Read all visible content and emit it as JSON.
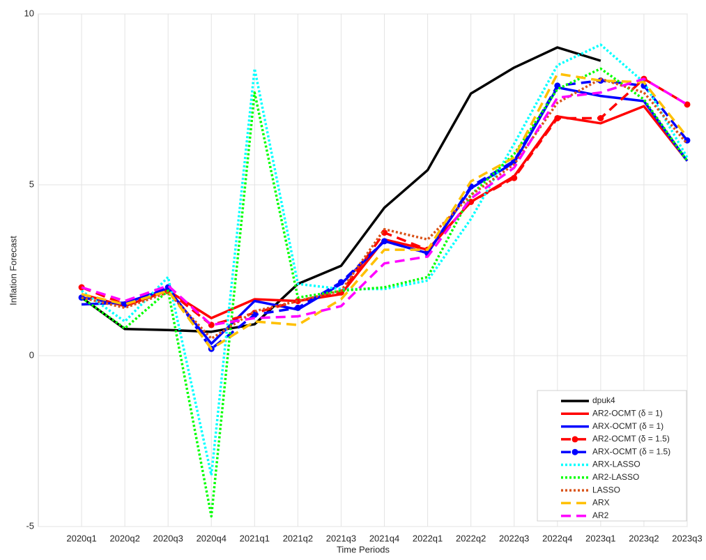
{
  "chart_data": {
    "type": "line",
    "x_label": "Time Periods",
    "y_label": "Inflation Forecast",
    "categories": [
      "2020q1",
      "2020q2",
      "2020q3",
      "2020q4",
      "2021q1",
      "2021q2",
      "2021q3",
      "2021q4",
      "2022q1",
      "2022q2",
      "2022q3",
      "2022q4",
      "2023q1",
      "2023q2",
      "2023q3"
    ],
    "ylim": [
      -5,
      10
    ],
    "yticks": [
      -5,
      0,
      5,
      10
    ],
    "grid": true,
    "legend": "lower right",
    "series": [
      {
        "name": "dpuk4",
        "color": "#000000",
        "style": "solid",
        "values": [
          1.7,
          0.78,
          0.75,
          0.7,
          0.92,
          2.1,
          2.63,
          4.33,
          5.43,
          7.67,
          8.43,
          9.02,
          8.63,
          null,
          null
        ]
      },
      {
        "name": "AR2-OCMT (δ = 1)",
        "color": "#ff0000",
        "style": "solid",
        "values": [
          1.8,
          1.45,
          1.9,
          1.1,
          1.65,
          1.6,
          1.8,
          3.4,
          3.1,
          4.5,
          5.25,
          7.0,
          6.8,
          7.3,
          5.7
        ]
      },
      {
        "name": "ARX-OCMT (δ = 1)",
        "color": "#0000ff",
        "style": "solid",
        "values": [
          1.5,
          1.55,
          1.95,
          0.35,
          1.6,
          1.35,
          2.1,
          3.35,
          3.0,
          4.9,
          5.65,
          7.85,
          7.6,
          7.45,
          5.7
        ]
      },
      {
        "name": "AR2-OCMT (δ = 1.5)",
        "color": "#ff0000",
        "style": "dashed",
        "marker": "circle",
        "values": [
          2.0,
          1.5,
          1.9,
          0.9,
          1.25,
          1.6,
          1.85,
          3.6,
          3.1,
          4.5,
          5.2,
          6.95,
          6.95,
          8.1,
          7.35
        ]
      },
      {
        "name": "ARX-OCMT (δ = 1.5)",
        "color": "#0000ff",
        "style": "dashed",
        "marker": "circle",
        "values": [
          1.7,
          1.5,
          2.0,
          0.2,
          1.2,
          1.4,
          2.15,
          3.35,
          3.0,
          4.95,
          5.7,
          7.9,
          8.05,
          7.9,
          6.3
        ]
      },
      {
        "name": "ARX-LASSO",
        "color": "#00ffff",
        "style": "dotted",
        "values": [
          1.9,
          1.0,
          2.3,
          -3.5,
          8.4,
          2.1,
          1.95,
          1.95,
          2.2,
          4.0,
          6.2,
          8.5,
          9.1,
          8.0,
          5.8
        ]
      },
      {
        "name": "AR2-LASSO",
        "color": "#00ff00",
        "style": "dotted",
        "values": [
          1.7,
          0.8,
          1.9,
          -4.7,
          7.7,
          1.7,
          1.9,
          2.0,
          2.3,
          4.7,
          5.9,
          7.8,
          8.4,
          7.5,
          5.7
        ]
      },
      {
        "name": "LASSO",
        "color": "#d95319",
        "style": "dotted",
        "values": [
          1.7,
          1.4,
          1.85,
          0.5,
          1.3,
          1.6,
          1.9,
          3.7,
          3.4,
          4.7,
          5.6,
          7.4,
          8.1,
          7.7,
          6.2
        ]
      },
      {
        "name": "ARX",
        "color": "#ffc000",
        "style": "dashed",
        "values": [
          1.8,
          1.5,
          1.9,
          0.2,
          1.0,
          0.9,
          1.65,
          3.1,
          3.1,
          5.1,
          5.8,
          8.25,
          8.05,
          8.0,
          6.4
        ]
      },
      {
        "name": "AR2",
        "color": "#ff00ff",
        "style": "dashed",
        "values": [
          2.0,
          1.6,
          2.05,
          0.9,
          1.1,
          1.15,
          1.45,
          2.7,
          2.9,
          4.6,
          5.5,
          7.55,
          7.7,
          8.1,
          7.35
        ]
      }
    ]
  }
}
